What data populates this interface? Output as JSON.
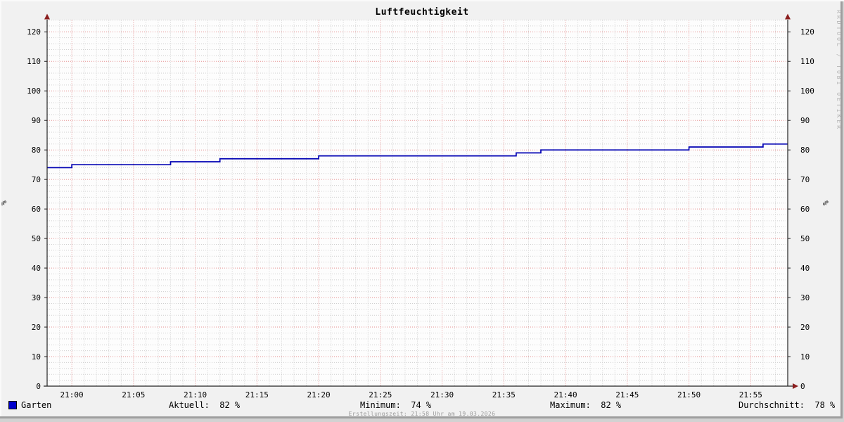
{
  "title": "Luftfeuchtigkeit",
  "watermark": "RRDTOOL / TOBI OETIKER",
  "y_axis_label_left": "%",
  "y_axis_label_right": "%",
  "footer": "Erstellungszeit: 21:58 Uhr am 19.03.2026",
  "legend": {
    "series_label": "Garten",
    "series_swatch_color": "#0000cc",
    "stats": [
      {
        "name": "current",
        "text": "Aktuell:  82 %"
      },
      {
        "name": "minimum",
        "text": "Minimum:  74 %"
      },
      {
        "name": "maximum",
        "text": "Maximum:  82 %"
      },
      {
        "name": "average",
        "text": "Durchschnitt:  78 %"
      }
    ]
  },
  "chart_data": {
    "type": "line",
    "title": "Luftfeuchtigkeit",
    "ylabel": "%",
    "x_start": "20:58",
    "x_end": "21:58",
    "ylim": [
      0,
      124
    ],
    "y_major_step": 10,
    "y_minor_step": 2,
    "x_major_step_minutes": 5,
    "x_minor_step_minutes": 1,
    "y_tick_labels": [
      "0",
      "10",
      "20",
      "30",
      "40",
      "50",
      "60",
      "70",
      "80",
      "90",
      "100",
      "110",
      "120"
    ],
    "x_tick_labels": [
      "21:00",
      "21:05",
      "21:10",
      "21:15",
      "21:20",
      "21:25",
      "21:30",
      "21:35",
      "21:40",
      "21:45",
      "21:50",
      "21:55"
    ],
    "series": [
      {
        "name": "Garten",
        "color": "#0000b3",
        "unit": "%",
        "steps": [
          {
            "from": "20:58",
            "to": "21:00",
            "value": 74
          },
          {
            "from": "21:00",
            "to": "21:08",
            "value": 75
          },
          {
            "from": "21:08",
            "to": "21:12",
            "value": 76
          },
          {
            "from": "21:12",
            "to": "21:20",
            "value": 77
          },
          {
            "from": "21:20",
            "to": "21:36",
            "value": 78
          },
          {
            "from": "21:36",
            "to": "21:38",
            "value": 79
          },
          {
            "from": "21:38",
            "to": "21:50",
            "value": 80
          },
          {
            "from": "21:50",
            "to": "21:56",
            "value": 81
          },
          {
            "from": "21:56",
            "to": "21:58",
            "value": 82
          }
        ]
      }
    ],
    "stats": {
      "current": 82,
      "minimum": 74,
      "maximum": 82,
      "average": 78
    },
    "colors": {
      "plot_background": "#fdfdfd",
      "outer_background": "#f1f1f1",
      "grid_major": "#e59090",
      "grid_minor": "#cfcfcf",
      "axis": "#222222",
      "arrow": "#8b1e1e"
    },
    "legend_position": "bottom",
    "grid": true
  }
}
